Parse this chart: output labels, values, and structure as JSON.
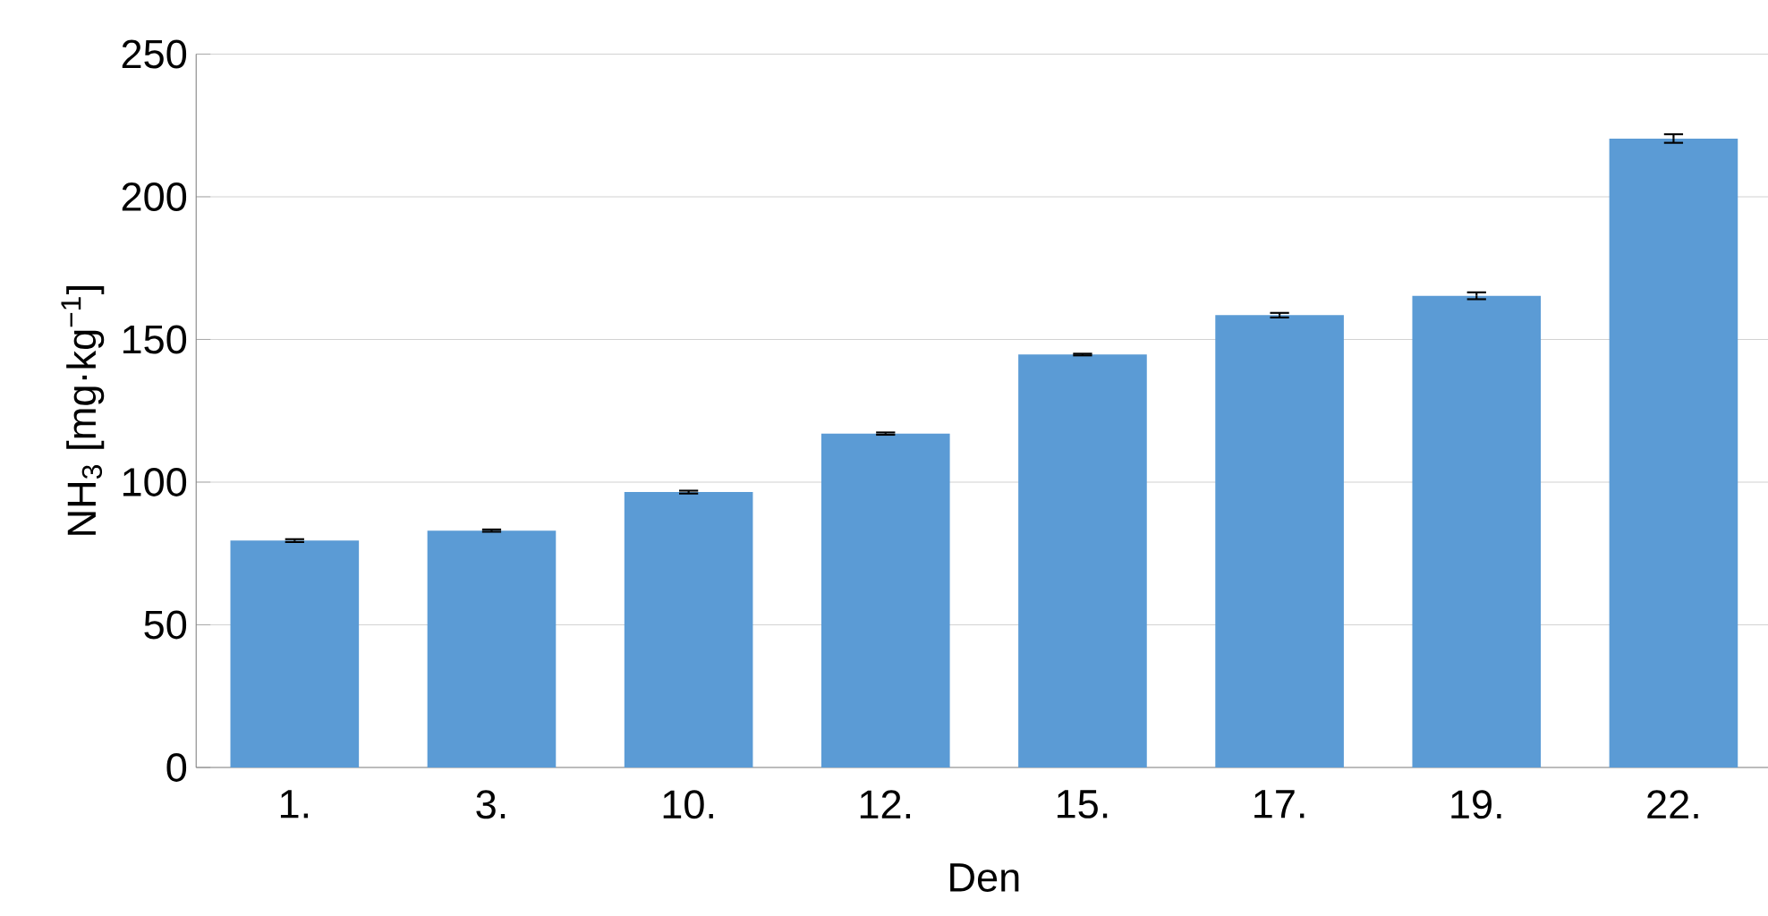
{
  "chart_data": {
    "type": "bar",
    "xlabel": "Den",
    "ylabel": "NH$_{3}$ [mg·kg$^{−1}$]",
    "categories": [
      "1.",
      "3.",
      "10.",
      "12.",
      "15.",
      "17.",
      "19.",
      "22."
    ],
    "values": [
      79.5,
      83,
      96.5,
      117,
      144.7,
      158.5,
      165.3,
      220.4
    ],
    "errors": [
      0.5,
      0.4,
      0.5,
      0.4,
      0.3,
      0.8,
      1.2,
      1.5
    ],
    "color": "#5b9bd5",
    "ylim": [
      0,
      250
    ],
    "yticks": [
      0,
      50,
      100,
      150,
      200,
      250
    ],
    "grid": "y"
  }
}
